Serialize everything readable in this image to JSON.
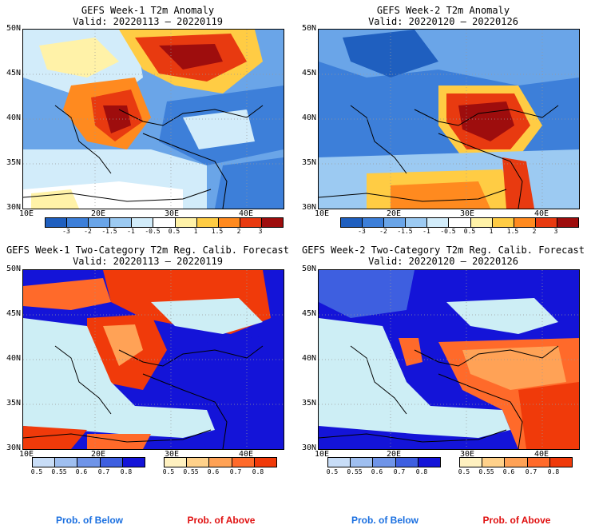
{
  "panels": [
    {
      "title": "GEFS Week-1 T2m Anomaly",
      "valid": "Valid: 20220113 – 20220119"
    },
    {
      "title": "GEFS Week-2 T2m Anomaly",
      "valid": "Valid: 20220120 – 20220126"
    },
    {
      "title": "GEFS Week-1 Two-Category T2m Reg. Calib. Forecast",
      "valid": "Valid: 20220113 – 20220119"
    },
    {
      "title": "GEFS Week-2 Two-Category T2m Reg. Calib. Forecast",
      "valid": "Valid: 20220120 – 20220126"
    }
  ],
  "lat_labels": [
    "50N",
    "45N",
    "40N",
    "35N",
    "30N"
  ],
  "lon_labels": [
    "10E",
    "20E",
    "30E",
    "40E"
  ],
  "anomaly_colorbar": {
    "ticks": [
      "-3",
      "-2",
      "-1.5",
      "-1",
      "-0.5",
      "0.5",
      "1",
      "1.5",
      "2",
      "3"
    ],
    "colors": [
      "#1f5fbf",
      "#3d7fd9",
      "#6aa5e8",
      "#9ccaf2",
      "#d2ecfa",
      "#ffffff",
      "#fff2a8",
      "#ffcc44",
      "#ff8a1f",
      "#e83a10",
      "#9e0d0d"
    ]
  },
  "prob_colorbar_below": {
    "ticks": [
      "0.5",
      "0.55",
      "0.6",
      "0.7",
      "0.8"
    ],
    "colors": [
      "#c8ddf7",
      "#9fbff0",
      "#6f94e8",
      "#3e5fe0",
      "#1414d8"
    ]
  },
  "prob_colorbar_above": {
    "ticks": [
      "0.5",
      "0.55",
      "0.6",
      "0.7",
      "0.8"
    ],
    "colors": [
      "#fff1c0",
      "#ffd18a",
      "#ffa256",
      "#ff6a2a",
      "#f03a0a"
    ]
  },
  "prob_labels": {
    "below": "Prob. of Below",
    "above": "Prob. of Above"
  },
  "colors": {
    "below": "#1a6fe0",
    "above": "#e01010"
  }
}
